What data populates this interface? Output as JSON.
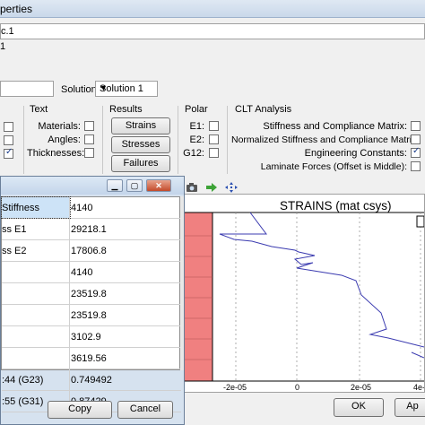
{
  "window": {
    "title": "perties"
  },
  "header": {
    "name_value": "c.1",
    "line2": "1"
  },
  "solution": {
    "label": "Solution:",
    "selected": "Solution 1"
  },
  "groups": {
    "text": {
      "title": "Text",
      "items": [
        {
          "label": "Materials:",
          "checked": false
        },
        {
          "label": "Angles:",
          "checked": false
        },
        {
          "label": "Thicknesses:",
          "checked": false
        }
      ]
    },
    "results": {
      "title": "Results",
      "buttons": [
        "Strains",
        "Stresses",
        "Failures"
      ]
    },
    "polar": {
      "title": "Polar",
      "items": [
        {
          "label": "E1:",
          "checked": false
        },
        {
          "label": "E2:",
          "checked": false
        },
        {
          "label": "G12:",
          "checked": false
        }
      ]
    },
    "clt": {
      "title": "CLT Analysis",
      "items": [
        {
          "label": "Stiffness and Compliance Matrix:",
          "checked": false
        },
        {
          "label": "Normalized Stiffness and Compliance Matrix:",
          "checked": false
        },
        {
          "label": "Engineering Constants:",
          "checked": true
        },
        {
          "label": "Laminate Forces (Offset is Middle):",
          "checked": false
        }
      ]
    }
  },
  "plot": {
    "title": "STRAINS (mat csys)",
    "ticks": [
      "-2e-05",
      "0",
      "2e-05",
      "4e-"
    ],
    "colors": {
      "line": "#3b3bb0",
      "band": "#f08080"
    }
  },
  "popup": {
    "rows": [
      {
        "name": "Stiffness",
        "value": "4140"
      },
      {
        "name": "ss E1",
        "value": "29218.1"
      },
      {
        "name": "ss E2",
        "value": "17806.8"
      },
      {
        "name": "",
        "value": "4140"
      },
      {
        "name": "",
        "value": "23519.8"
      },
      {
        "name": "",
        "value": "23519.8"
      },
      {
        "name": "",
        "value": "3102.9"
      },
      {
        "name": "",
        "value": "3619.56"
      },
      {
        "name": ":44 (G23)",
        "value": "0.749492"
      },
      {
        "name": ":55 (G31)",
        "value": "0.87429"
      }
    ],
    "copy_label": "Copy",
    "cancel_label": "Cancel"
  },
  "footer": {
    "ok_label": "OK",
    "apply_label": "Ap"
  }
}
